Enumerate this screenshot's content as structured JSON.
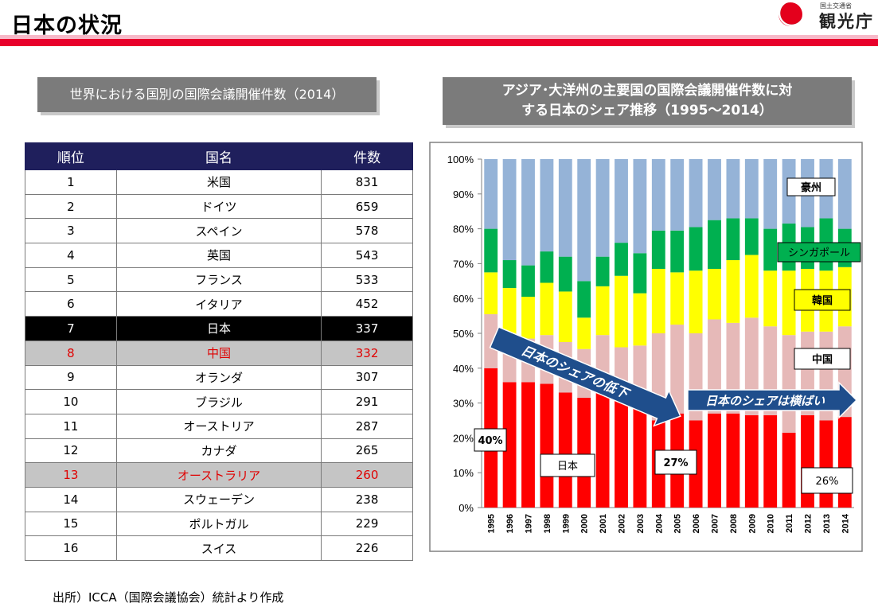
{
  "header": {
    "title": "日本の状況",
    "logo_small": "国土交通省",
    "logo_text": "観光庁"
  },
  "table_title": "世界における国別の国際会議開催件数（2014）",
  "chart_title_line1": "アジア･大洋州の主要国の国際会議開催件数に対",
  "chart_title_line2": "する日本のシェア推移（1995～2014）",
  "table": {
    "headers": [
      "順位",
      "国名",
      "件数"
    ],
    "rows": [
      [
        "1",
        "米国",
        "831"
      ],
      [
        "2",
        "ドイツ",
        "659"
      ],
      [
        "3",
        "スペイン",
        "578"
      ],
      [
        "4",
        "英国",
        "543"
      ],
      [
        "5",
        "フランス",
        "533"
      ],
      [
        "6",
        "イタリア",
        "452"
      ],
      [
        "7",
        "日本",
        "337"
      ],
      [
        "8",
        "中国",
        "332"
      ],
      [
        "9",
        "オランダ",
        "307"
      ],
      [
        "10",
        "ブラジル",
        "291"
      ],
      [
        "11",
        "オーストリア",
        "287"
      ],
      [
        "12",
        "カナダ",
        "265"
      ],
      [
        "13",
        "オーストラリア",
        "260"
      ],
      [
        "14",
        "スウェーデン",
        "238"
      ],
      [
        "15",
        "ポルトガル",
        "229"
      ],
      [
        "16",
        "スイス",
        "226"
      ]
    ]
  },
  "chart_data": {
    "type": "bar",
    "stacked": true,
    "ylim": [
      0,
      100
    ],
    "y_ticks": [
      "0%",
      "10%",
      "20%",
      "30%",
      "40%",
      "50%",
      "60%",
      "70%",
      "80%",
      "90%",
      "100%"
    ],
    "categories": [
      "1995",
      "1996",
      "1997",
      "1998",
      "1999",
      "2000",
      "2001",
      "2002",
      "2003",
      "2004",
      "2005",
      "2006",
      "2007",
      "2008",
      "2009",
      "2010",
      "2011",
      "2012",
      "2013",
      "2014"
    ],
    "series": [
      {
        "name": "日本",
        "color": "#ff0000",
        "values": [
          40,
          36,
          36,
          35.5,
          33,
          31.5,
          35,
          31,
          30,
          25,
          27,
          25,
          27,
          27,
          26.5,
          26.5,
          21.5,
          26.5,
          25,
          26
        ]
      },
      {
        "name": "中国",
        "color": "#e6b9b8",
        "values": [
          15.5,
          12.5,
          12.5,
          14,
          14.5,
          14,
          14.5,
          15,
          16.5,
          25,
          25.5,
          25,
          27,
          26,
          28,
          25.5,
          28,
          24,
          25.5,
          26
        ]
      },
      {
        "name": "韓国",
        "color": "#ffff00",
        "values": [
          12,
          14.5,
          12,
          15,
          14.5,
          9,
          14,
          20.5,
          15,
          18.5,
          15,
          18,
          14.5,
          18,
          18,
          16,
          18.5,
          18,
          17.5,
          17
        ]
      },
      {
        "name": "シンガポール",
        "color": "#00b050",
        "values": [
          12.5,
          8,
          9,
          9,
          10,
          10.5,
          8.5,
          9.5,
          11.5,
          11,
          12,
          12.5,
          14,
          12,
          10.5,
          12,
          13.5,
          12,
          15,
          11
        ]
      },
      {
        "name": "豪州",
        "color": "#95b3d7",
        "values": [
          20,
          29,
          30.5,
          26.5,
          28,
          35,
          28,
          24,
          27,
          20.5,
          20.5,
          19.5,
          17.5,
          17,
          17,
          20,
          18.5,
          19.5,
          17,
          20
        ]
      }
    ],
    "annotations": [
      "40%",
      "27%",
      "26%",
      "日本のシェアの低下",
      "日本のシェアは横ばい"
    ]
  },
  "source_note": "出所）ICCA（国際会議協会）統計より作成"
}
